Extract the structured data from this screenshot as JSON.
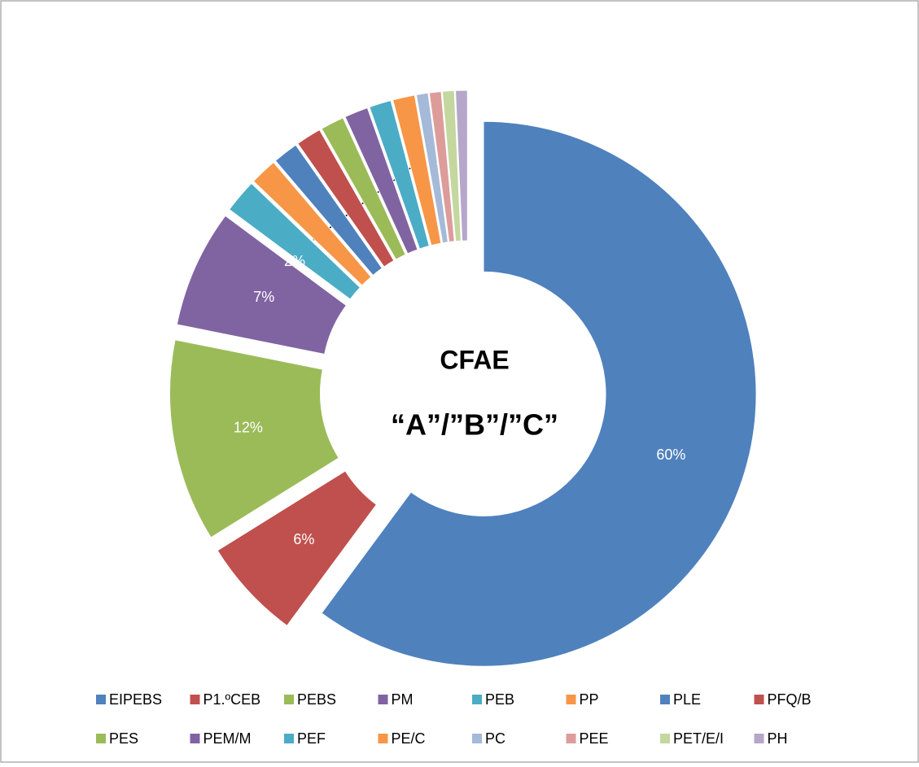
{
  "chart_data": {
    "type": "donut",
    "annotations": [
      "CFAE",
      "“A”/”B”/”C”"
    ],
    "categories": [
      "EIPEBS",
      "P1.ºCEB",
      "PEBS",
      "PM",
      "PEB",
      "PP",
      "PLE",
      "PFQ/B",
      "PES",
      "PEM/M",
      "PEF",
      "PE/C",
      "PC",
      "PEE",
      "PET/E/I",
      "PH"
    ],
    "values": [
      60,
      6,
      12,
      7,
      2,
      1.6,
      1.5,
      1.5,
      1.4,
      1.4,
      1.3,
      1.3,
      0.7,
      0.7,
      0.7,
      0.7
    ],
    "value_labels": [
      "60%",
      "6%",
      "12%",
      "7%",
      "2%",
      null,
      null,
      null,
      null,
      null,
      null,
      null,
      "1%",
      null,
      null,
      null
    ],
    "colors": [
      "#4f81bd",
      "#c0504d",
      "#9bbb59",
      "#8064a2",
      "#4bacc6",
      "#f79646",
      "#4f81bd",
      "#c0504d",
      "#9bbb59",
      "#8064a2",
      "#4bacc6",
      "#f79646",
      "#a5b9d8",
      "#dc9c9a",
      "#c4d79e",
      "#b6a6ca"
    ],
    "legend": "bottom"
  }
}
